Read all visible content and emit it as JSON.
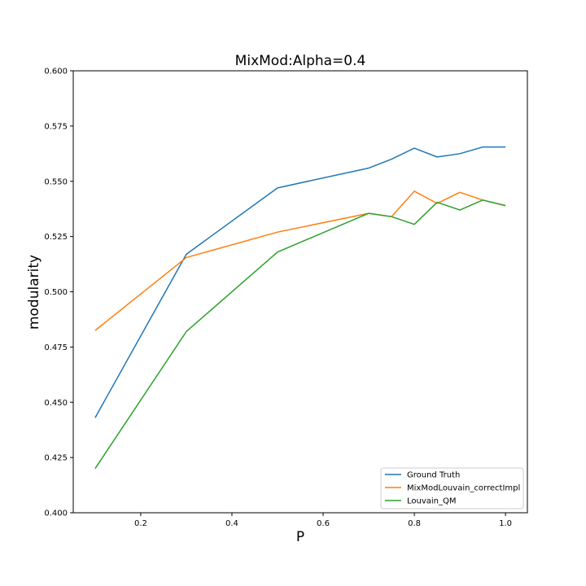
{
  "chart_data": {
    "type": "line",
    "title": "MixMod:Alpha=0.4",
    "xlabel": "P",
    "ylabel": "modularity",
    "xlim": [
      0.052,
      1.048
    ],
    "ylim": [
      0.4,
      0.6
    ],
    "xticks": [
      0.2,
      0.4,
      0.6,
      0.8,
      1.0
    ],
    "xtick_labels": [
      "0.2",
      "0.4",
      "0.6",
      "0.8",
      "1.0"
    ],
    "yticks": [
      0.4,
      0.425,
      0.45,
      0.475,
      0.5,
      0.525,
      0.55,
      0.575,
      0.6
    ],
    "ytick_labels": [
      "0.400",
      "0.425",
      "0.450",
      "0.475",
      "0.500",
      "0.525",
      "0.550",
      "0.575",
      "0.600"
    ],
    "grid": false,
    "legend_position": "lower right",
    "series": [
      {
        "name": "Ground Truth",
        "color": "#1f77b4",
        "x": [
          0.1,
          0.3,
          0.5,
          0.7,
          0.75,
          0.8,
          0.85,
          0.9,
          0.95,
          1.0
        ],
        "y": [
          0.443,
          0.517,
          0.547,
          0.556,
          0.56,
          0.565,
          0.561,
          0.5625,
          0.5655,
          0.5655
        ]
      },
      {
        "name": "MixModLouvain_correctImpl",
        "color": "#ff7f0e",
        "x": [
          0.1,
          0.3,
          0.5,
          0.7,
          0.75,
          0.8,
          0.85,
          0.9,
          0.95,
          1.0
        ],
        "y": [
          0.4825,
          0.5155,
          0.527,
          0.5355,
          0.534,
          0.5455,
          0.54,
          0.545,
          0.5415,
          0.539
        ]
      },
      {
        "name": "Louvain_QM",
        "color": "#2ca02c",
        "x": [
          0.1,
          0.3,
          0.5,
          0.7,
          0.75,
          0.8,
          0.85,
          0.9,
          0.95,
          1.0
        ],
        "y": [
          0.42,
          0.482,
          0.518,
          0.5355,
          0.534,
          0.5305,
          0.5405,
          0.537,
          0.5415,
          0.539
        ]
      }
    ]
  }
}
